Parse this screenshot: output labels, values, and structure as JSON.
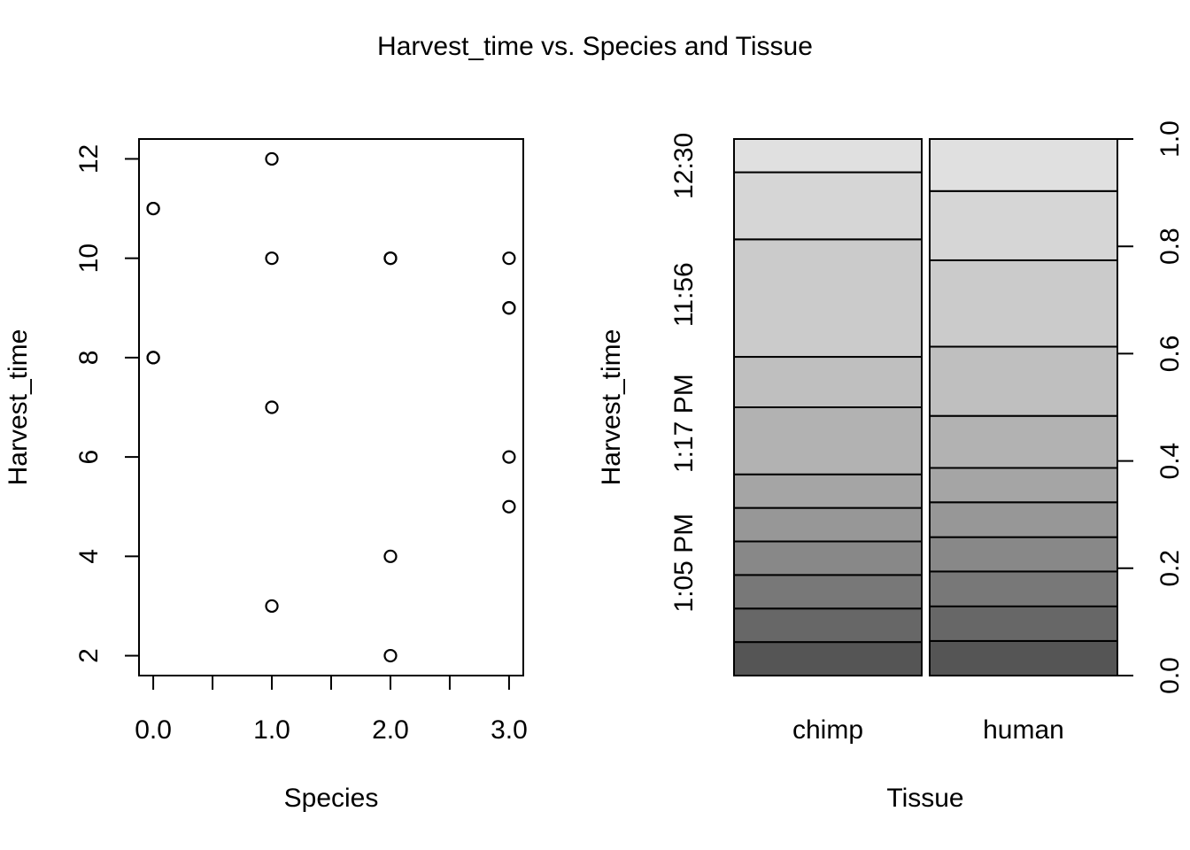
{
  "title": "Harvest_time vs. Species and Tissue",
  "colors": {
    "ink": "#000000",
    "background": "#ffffff"
  },
  "chart_data": [
    {
      "type": "scatter",
      "xlabel": "Species",
      "ylabel": "Harvest_time",
      "xlim": [
        -0.12,
        3.12
      ],
      "ylim": [
        1.6,
        12.4
      ],
      "x_ticks": [
        0,
        0.5,
        1,
        1.5,
        2,
        2.5,
        3
      ],
      "x_tick_labels": [
        {
          "value": 0,
          "label": "0.0"
        },
        {
          "value": 1,
          "label": "1.0"
        },
        {
          "value": 2,
          "label": "2.0"
        },
        {
          "value": 3,
          "label": "3.0"
        }
      ],
      "y_ticks": [
        {
          "value": 2,
          "label": "2"
        },
        {
          "value": 4,
          "label": "4"
        },
        {
          "value": 6,
          "label": "6"
        },
        {
          "value": 8,
          "label": "8"
        },
        {
          "value": 10,
          "label": "10"
        },
        {
          "value": 12,
          "label": "12"
        }
      ],
      "marker": "open-circle",
      "grid": false,
      "points": [
        {
          "x": 0,
          "y": 11
        },
        {
          "x": 0,
          "y": 11
        },
        {
          "x": 0,
          "y": 8
        },
        {
          "x": 0,
          "y": 8
        },
        {
          "x": 1,
          "y": 12
        },
        {
          "x": 1,
          "y": 10
        },
        {
          "x": 1,
          "y": 7
        },
        {
          "x": 1,
          "y": 3
        },
        {
          "x": 2,
          "y": 10
        },
        {
          "x": 2,
          "y": 10
        },
        {
          "x": 2,
          "y": 4
        },
        {
          "x": 2,
          "y": 2
        },
        {
          "x": 3,
          "y": 10
        },
        {
          "x": 3,
          "y": 9
        },
        {
          "x": 3,
          "y": 9
        },
        {
          "x": 3,
          "y": 6
        },
        {
          "x": 3,
          "y": 5
        }
      ]
    },
    {
      "type": "spineplot",
      "xlabel": "Tissue",
      "ylabel": "Harvest_time",
      "categories": [
        {
          "name": "chimp",
          "width": 0.5
        },
        {
          "name": "human",
          "width": 0.5
        }
      ],
      "y_group_labels": [
        {
          "label": "1:05 PM",
          "position": 0.21
        },
        {
          "label": "1:17 PM",
          "position": 0.47
        },
        {
          "label": "11:56",
          "position": 0.71
        },
        {
          "label": "12:30",
          "position": 0.95
        }
      ],
      "right_axis": {
        "ylim": [
          0,
          1
        ],
        "ticks": [
          {
            "value": 0,
            "label": "0.0"
          },
          {
            "value": 0.2,
            "label": "0.2"
          },
          {
            "value": 0.4,
            "label": "0.4"
          },
          {
            "value": 0.6,
            "label": "0.6"
          },
          {
            "value": 0.8,
            "label": "0.8"
          },
          {
            "value": 1.0,
            "label": "1.0"
          }
        ]
      },
      "segment_colors": [
        "#555555",
        "#676767",
        "#787878",
        "#888888",
        "#979797",
        "#a5a5a5",
        "#b2b2b2",
        "#bfbfbf",
        "#cbcbcb",
        "#d6d6d6",
        "#e0e0e0"
      ],
      "boundaries": {
        "chimp": [
          0.0625,
          0.125,
          0.1875,
          0.25,
          0.3125,
          0.375,
          0.5,
          0.594,
          0.813,
          0.938
        ],
        "human": [
          0.0645,
          0.129,
          0.194,
          0.258,
          0.323,
          0.387,
          0.484,
          0.613,
          0.774,
          0.903
        ]
      }
    }
  ]
}
